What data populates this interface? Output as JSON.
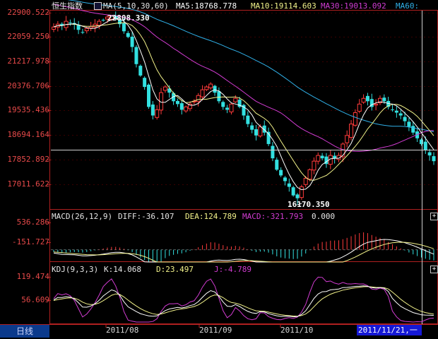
{
  "window": {
    "period_label": "日线",
    "current_date": "2011/11/21,一"
  },
  "main_panel": {
    "title": "恒生指数",
    "ma_params": "MA(5,10,30,60)",
    "ma5": "MA5:18768.778",
    "ma10": "MA10:19114.603",
    "ma30": "MA30:19013.092",
    "ma60": "MA60:",
    "high_label": "22808.330",
    "low_label": "16170.350"
  },
  "macd_panel": {
    "params": "MACD(26,12,9)",
    "diff": "DIFF:-36.107",
    "dea": "DEA:124.789",
    "macd": "MACD:-321.793",
    "zero": "0.000",
    "expand_button": "+"
  },
  "kdj_panel": {
    "params": "KDJ(9,3,3)",
    "k": "K:14.068",
    "d": "D:23.497",
    "j": "J:-4.789",
    "expand_button": "+"
  },
  "colors": {
    "up": "#ff3b3b",
    "down": "#32e0e0",
    "ma5": "#ffffff",
    "ma10": "#f2f28a",
    "ma30": "#d23cd2",
    "ma60": "#30b0e8",
    "axis": "#b02020"
  },
  "chart_data": [
    {
      "type": "candlestick",
      "title": "恒生指数",
      "y_ticks": [
        "22900.522",
        "22059.250",
        "21217.978",
        "20376.706",
        "19535.436",
        "18694.164",
        "17852.892",
        "17011.622"
      ],
      "x_ticks": [
        "2011/08",
        "2011/09",
        "2011/10"
      ],
      "ylim": [
        16170.35,
        22900.522
      ],
      "high": 22808.33,
      "low": 16170.35,
      "series": [
        {
          "name": "MA5",
          "last": 18768.778
        },
        {
          "name": "MA10",
          "last": 19114.603
        },
        {
          "name": "MA30",
          "last": 19013.092
        },
        {
          "name": "MA60"
        }
      ],
      "approx_close_series": [
        22400,
        22500,
        22450,
        22600,
        22550,
        22480,
        22300,
        22200,
        22350,
        22420,
        22500,
        22600,
        22650,
        22750,
        22800,
        22700,
        22500,
        22250,
        22050,
        21700,
        21100,
        20700,
        20300,
        19600,
        19300,
        19500,
        20100,
        20300,
        20100,
        19800,
        19700,
        19500,
        19600,
        19700,
        19800,
        20000,
        20200,
        20300,
        20400,
        20100,
        19800,
        19600,
        19500,
        19700,
        19900,
        19600,
        19300,
        19000,
        18800,
        18600,
        18900,
        18700,
        18300,
        17800,
        17400,
        17200,
        17000,
        16800,
        16500,
        16400,
        16800,
        17100,
        17400,
        17700,
        17900,
        17800,
        17600,
        17900,
        17800,
        17900,
        18300,
        18600,
        19000,
        19400,
        19700,
        19900,
        19800,
        19600,
        19700,
        19900,
        19800,
        19600,
        19500,
        19400,
        19300,
        19100,
        18900,
        18700,
        18500,
        18300,
        18100,
        17900,
        17700
      ]
    },
    {
      "type": "line",
      "title": "MACD(26,12,9)",
      "y_ticks": [
        "536.286",
        "-151.727"
      ],
      "ylim": [
        -300,
        700
      ],
      "zero_line": 0.0,
      "series": [
        {
          "name": "DIFF",
          "last": -36.107
        },
        {
          "name": "DEA",
          "last": 124.789
        },
        {
          "name": "MACD",
          "last": -321.793
        }
      ]
    },
    {
      "type": "line",
      "title": "KDJ(9,3,3)",
      "y_ticks": [
        "119.474",
        "56.609"
      ],
      "ylim": [
        -10,
        130
      ],
      "series": [
        {
          "name": "K",
          "last": 14.068
        },
        {
          "name": "D",
          "last": 23.497
        },
        {
          "name": "J",
          "last": -4.789
        }
      ]
    }
  ]
}
